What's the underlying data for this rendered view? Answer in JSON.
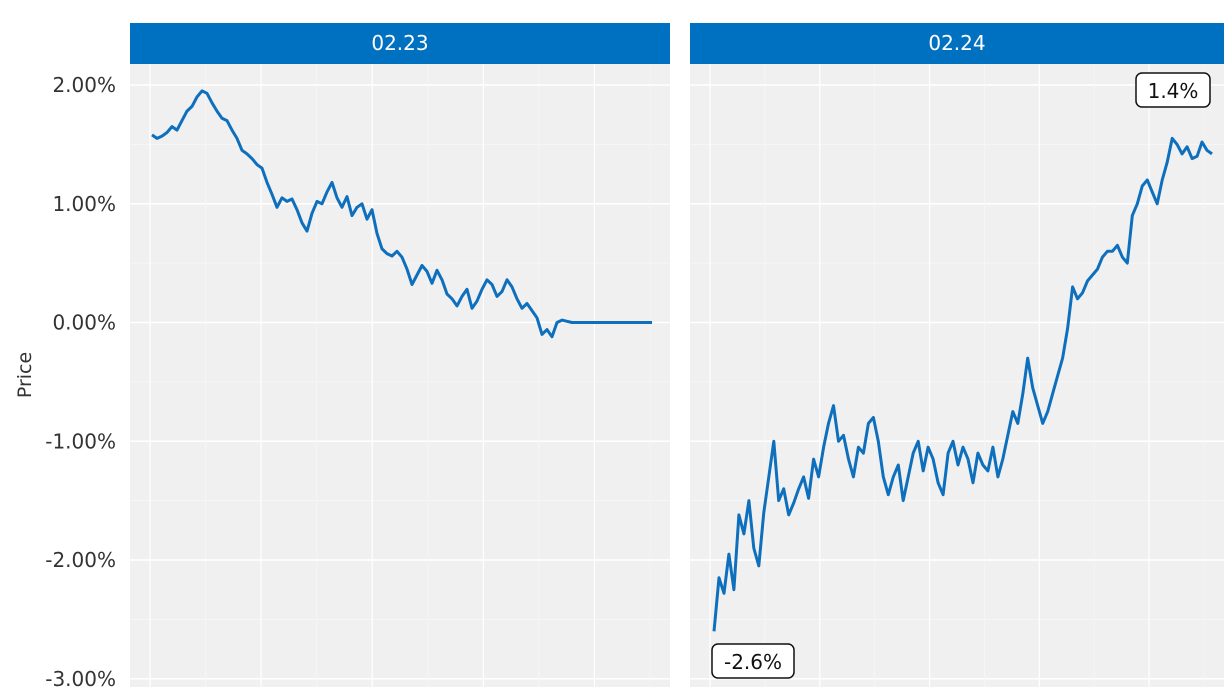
{
  "chart_data": {
    "type": "line",
    "ylabel": "Price",
    "y_ticks": [
      "2.00%",
      "1.00%",
      "0.00%",
      "-1.00%",
      "-2.00%",
      "-3.00%"
    ],
    "y_tick_values": [
      2,
      1,
      0,
      -1,
      -2,
      -3
    ],
    "ylim": [
      -3.05,
      2.2
    ],
    "grid": true,
    "line_color": "#0e6fbd",
    "strip_color": "#0070c0",
    "panels": [
      {
        "facet": "02.23",
        "x": [
          0,
          1,
          2,
          3,
          4,
          5,
          6,
          7,
          8,
          9,
          10,
          11,
          12,
          13,
          14,
          15,
          16,
          17,
          18,
          19,
          20,
          21,
          22,
          23,
          24,
          25,
          26,
          27,
          28,
          29,
          30,
          31,
          32,
          33,
          34,
          35,
          36,
          37,
          38,
          39,
          40,
          41,
          42,
          43,
          44,
          45,
          46,
          47,
          48,
          49,
          50,
          51,
          52,
          53,
          54,
          55,
          56,
          57,
          58,
          59,
          60,
          61,
          62,
          63,
          64,
          65,
          66,
          67,
          68,
          69,
          70,
          71,
          72,
          73,
          74,
          75,
          76,
          77,
          78,
          79,
          80,
          81,
          82,
          83,
          84,
          85,
          86,
          87,
          88,
          89,
          90,
          91,
          92,
          93,
          94,
          95,
          96,
          97,
          98,
          99,
          100
        ],
        "y": [
          1.58,
          1.55,
          1.57,
          1.6,
          1.65,
          1.62,
          1.7,
          1.78,
          1.82,
          1.9,
          1.95,
          1.93,
          1.85,
          1.78,
          1.72,
          1.7,
          1.62,
          1.55,
          1.45,
          1.42,
          1.38,
          1.33,
          1.3,
          1.18,
          1.08,
          0.97,
          1.05,
          1.02,
          1.04,
          0.95,
          0.84,
          0.77,
          0.92,
          1.02,
          1.0,
          1.1,
          1.18,
          1.05,
          0.97,
          1.06,
          0.9,
          0.97,
          1.0,
          0.87,
          0.95,
          0.75,
          0.62,
          0.58,
          0.56,
          0.6,
          0.55,
          0.45,
          0.32,
          0.4,
          0.48,
          0.43,
          0.33,
          0.44,
          0.36,
          0.24,
          0.2,
          0.14,
          0.22,
          0.28,
          0.12,
          0.18,
          0.28,
          0.36,
          0.32,
          0.22,
          0.26,
          0.36,
          0.3,
          0.2,
          0.12,
          0.16,
          0.1,
          0.04,
          -0.1,
          -0.06,
          -0.12,
          0.0,
          0.02,
          0.01,
          0.0,
          0.0,
          0.0,
          0.0,
          0.0,
          0.0,
          0.0,
          0.0,
          0.0,
          0.0,
          0.0,
          0.0,
          0.0,
          0.0,
          0.0,
          0.0,
          0.0
        ],
        "label": null
      },
      {
        "facet": "02.24",
        "x": [
          0,
          1,
          2,
          3,
          4,
          5,
          6,
          7,
          8,
          9,
          10,
          11,
          12,
          13,
          14,
          15,
          16,
          17,
          18,
          19,
          20,
          21,
          22,
          23,
          24,
          25,
          26,
          27,
          28,
          29,
          30,
          31,
          32,
          33,
          34,
          35,
          36,
          37,
          38,
          39,
          40,
          41,
          42,
          43,
          44,
          45,
          46,
          47,
          48,
          49,
          50,
          51,
          52,
          53,
          54,
          55,
          56,
          57,
          58,
          59,
          60,
          61,
          62,
          63,
          64,
          65,
          66,
          67,
          68,
          69,
          70,
          71,
          72,
          73,
          74,
          75,
          76,
          77,
          78,
          79,
          80,
          81,
          82,
          83,
          84,
          85,
          86,
          87,
          88,
          89,
          90,
          91,
          92,
          93,
          94,
          95,
          96,
          97,
          98,
          99,
          100
        ],
        "y": [
          -2.6,
          -2.15,
          -2.28,
          -1.95,
          -2.25,
          -1.62,
          -1.78,
          -1.5,
          -1.9,
          -2.05,
          -1.6,
          -1.3,
          -1.0,
          -1.5,
          -1.4,
          -1.62,
          -1.52,
          -1.4,
          -1.3,
          -1.48,
          -1.15,
          -1.3,
          -1.05,
          -0.85,
          -0.7,
          -1.0,
          -0.95,
          -1.15,
          -1.3,
          -1.05,
          -1.1,
          -0.85,
          -0.8,
          -1.0,
          -1.3,
          -1.45,
          -1.3,
          -1.2,
          -1.5,
          -1.3,
          -1.1,
          -1.0,
          -1.25,
          -1.05,
          -1.15,
          -1.35,
          -1.45,
          -1.1,
          -1.0,
          -1.2,
          -1.05,
          -1.15,
          -1.35,
          -1.1,
          -1.2,
          -1.25,
          -1.05,
          -1.3,
          -1.15,
          -0.95,
          -0.75,
          -0.85,
          -0.6,
          -0.3,
          -0.55,
          -0.7,
          -0.85,
          -0.75,
          -0.6,
          -0.45,
          -0.3,
          -0.05,
          0.3,
          0.2,
          0.25,
          0.35,
          0.4,
          0.45,
          0.55,
          0.6,
          0.6,
          0.65,
          0.55,
          0.5,
          0.9,
          1.0,
          1.15,
          1.2,
          1.1,
          1.0,
          1.2,
          1.35,
          1.55,
          1.5,
          1.42,
          1.48,
          1.38,
          1.4,
          1.52,
          1.45,
          1.42
        ],
        "label": {
          "text": "1.4%",
          "at": "end"
        },
        "label_min": {
          "text": "-2.6%",
          "at": "start"
        }
      }
    ]
  }
}
